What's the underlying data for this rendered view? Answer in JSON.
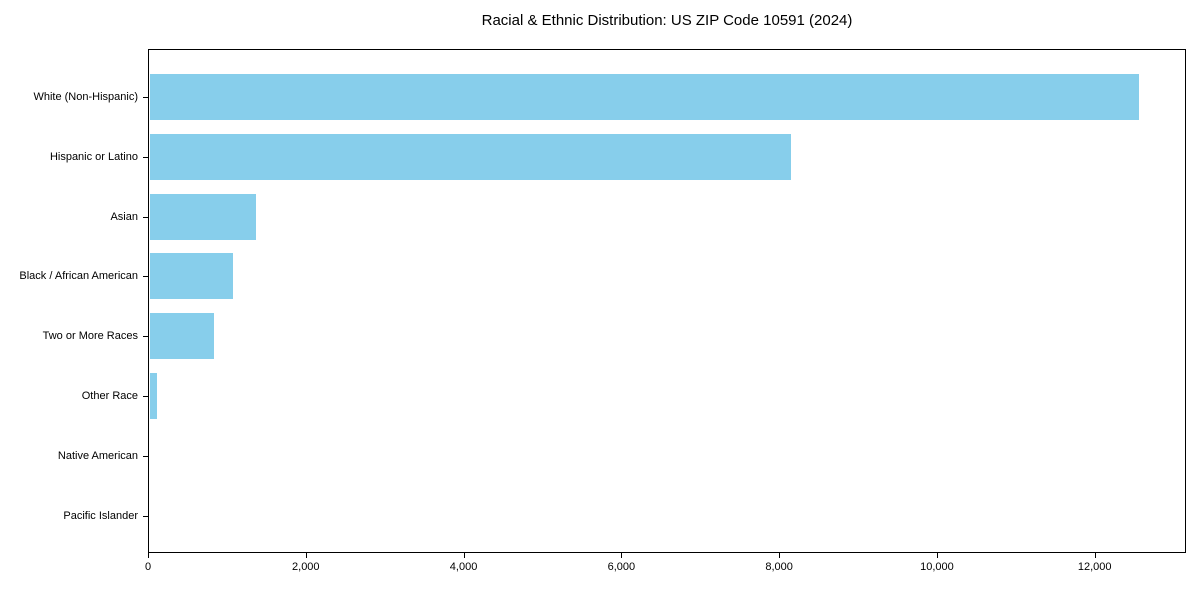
{
  "chart_data": {
    "type": "bar",
    "orientation": "horizontal",
    "title": "Racial & Ethnic Distribution: US ZIP Code 10591 (2024)",
    "categories": [
      "White (Non-Hispanic)",
      "Hispanic or Latino",
      "Asian",
      "Black / African American",
      "Two or More Races",
      "Other Race",
      "Native American",
      "Pacific Islander"
    ],
    "values": [
      12530,
      8120,
      1345,
      1050,
      810,
      95,
      0,
      0
    ],
    "xlabel": "",
    "ylabel": "",
    "xlim": [
      0,
      13157
    ],
    "xticks": {
      "values": [
        0,
        2000,
        4000,
        6000,
        8000,
        10000,
        12000
      ],
      "labels": [
        "0",
        "2,000",
        "4,000",
        "6,000",
        "8,000",
        "10,000",
        "12,000"
      ]
    },
    "bar_color": "#87CEEB",
    "frame_color": "#000000",
    "text_color": "#000000",
    "background_color": "#ffffff",
    "grid": false,
    "legend": "none"
  }
}
